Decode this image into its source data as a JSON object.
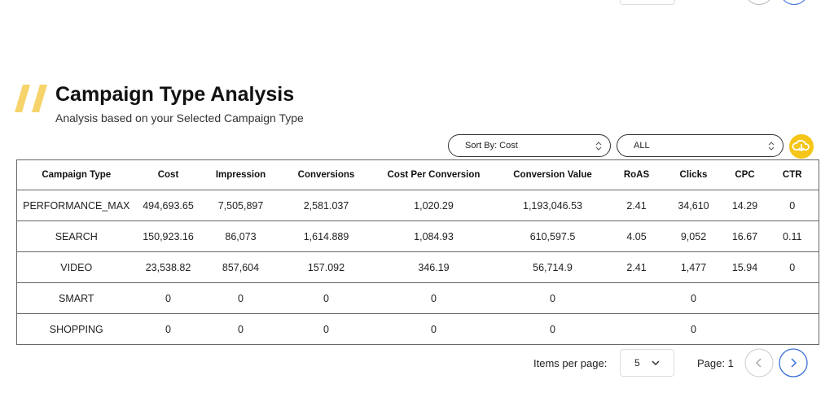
{
  "header": {
    "title": "Campaign Type Analysis",
    "subtitle": "Analysis based on your Selected Campaign Type"
  },
  "filters": {
    "sort": "Sort By: Cost",
    "type": "ALL"
  },
  "table": {
    "columns": [
      "Campaign Type",
      "Cost",
      "Impression",
      "Conversions",
      "Cost Per Conversion",
      "Conversion Value",
      "RoAS",
      "Clicks",
      "CPC",
      "CTR"
    ],
    "rows": [
      [
        "PERFORMANCE_MAX",
        "494,693.65",
        "7,505,897",
        "2,581.037",
        "1,020.29",
        "1,193,046.53",
        "2.41",
        "34,610",
        "14.29",
        "0"
      ],
      [
        "SEARCH",
        "150,923.16",
        "86,073",
        "1,614.889",
        "1,084.93",
        "610,597.5",
        "4.05",
        "9,052",
        "16.67",
        "0.11"
      ],
      [
        "VIDEO",
        "23,538.82",
        "857,604",
        "157.092",
        "346.19",
        "56,714.9",
        "2.41",
        "1,477",
        "15.94",
        "0"
      ],
      [
        "SMART",
        "0",
        "0",
        "0",
        "0",
        "0",
        null,
        "0",
        null,
        null
      ],
      [
        "SHOPPING",
        "0",
        "0",
        "0",
        "0",
        "0",
        null,
        "0",
        null,
        null
      ]
    ]
  },
  "pagination": {
    "items_label": "Items per page:",
    "items_value": "5",
    "page_label": "Page: 1"
  }
}
